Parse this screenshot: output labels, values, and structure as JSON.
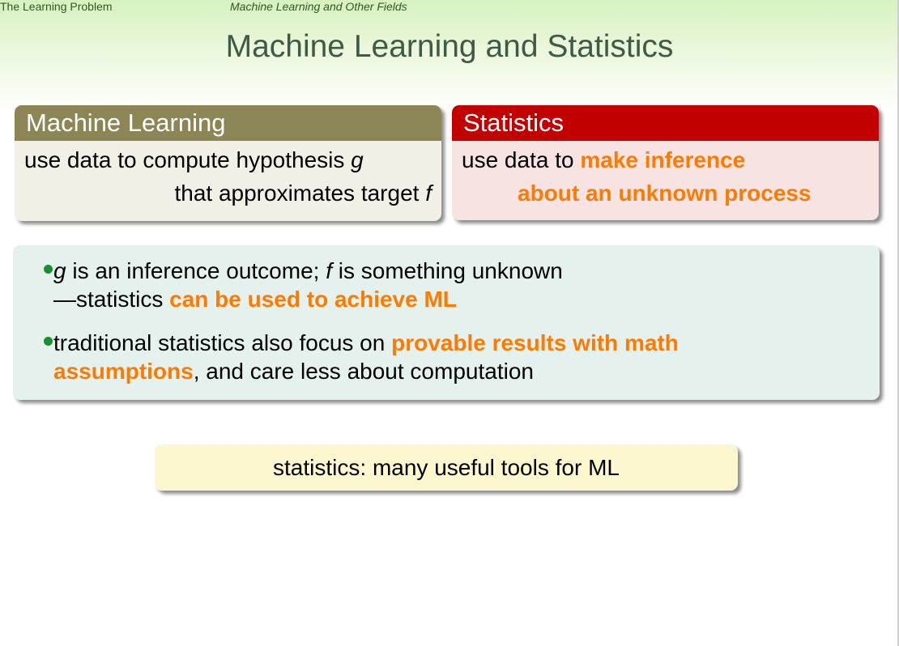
{
  "nav": {
    "section": "The Learning Problem",
    "subsection": "Machine Learning and Other Fields"
  },
  "slide": {
    "title": "Machine Learning and Statistics"
  },
  "ml_block": {
    "heading": "Machine Learning",
    "line1_text": "use data to compute hypothesis ",
    "line1_var": "g",
    "line2_text": "that approximates target ",
    "line2_var": "f"
  },
  "stats_block": {
    "heading": "Statistics",
    "line1_text": "use data to ",
    "line1_highlight": "make inference",
    "line2_highlight": "about an unknown process"
  },
  "bullets": {
    "b1_var1": "g",
    "b1_text1": " is an inference outcome; ",
    "b1_var2": "f",
    "b1_text2": " is something unknown",
    "b1_line2_text": "—statistics ",
    "b1_line2_highlight": "can be used to achieve ML",
    "b2_text": "traditional statistics also focus on ",
    "b2_highlight1": "provable results with math",
    "b2_highlight2": "assumptions",
    "b2_text2": ", and care less about computation"
  },
  "note": {
    "text": "statistics: many useful tools for ML"
  },
  "colors": {
    "ml_header": "#8c8656",
    "stats_header": "#c30000",
    "highlight": "#ff7a00",
    "bullet_dot": "#188f32",
    "title": "#3f5a45"
  }
}
